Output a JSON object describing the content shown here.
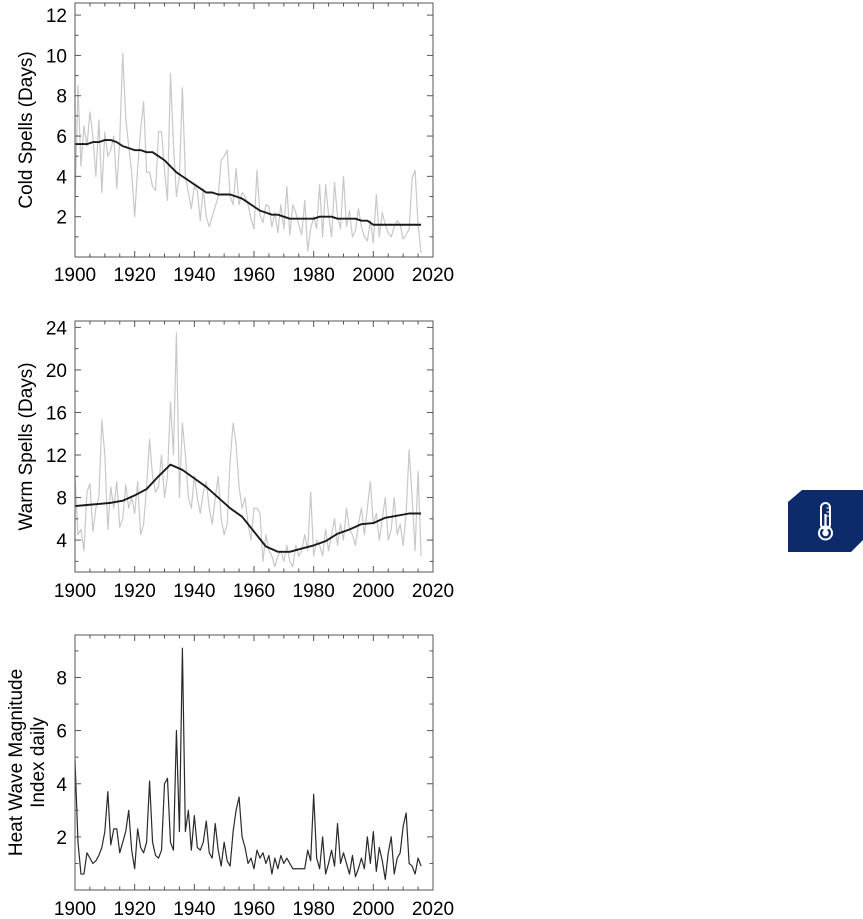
{
  "chart_data": [
    {
      "type": "line",
      "ylabel": "Cold Spells (Days)",
      "xlim": [
        1900,
        2020
      ],
      "ylim": [
        0,
        12.6
      ],
      "xticks": [
        1900,
        1920,
        1940,
        1960,
        1980,
        2000,
        2020
      ],
      "yticks": [
        2,
        4,
        6,
        8,
        10,
        12
      ],
      "series": [
        {
          "role": "annual",
          "color": "#c8c8c8",
          "x": [
            1900,
            1901,
            1902,
            1903,
            1904,
            1905,
            1906,
            1907,
            1908,
            1909,
            1910,
            1911,
            1912,
            1913,
            1914,
            1915,
            1916,
            1917,
            1918,
            1919,
            1920,
            1921,
            1922,
            1923,
            1924,
            1925,
            1926,
            1927,
            1928,
            1929,
            1930,
            1931,
            1932,
            1933,
            1934,
            1935,
            1936,
            1937,
            1938,
            1939,
            1940,
            1941,
            1942,
            1943,
            1944,
            1945,
            1946,
            1947,
            1948,
            1949,
            1950,
            1951,
            1952,
            1953,
            1954,
            1955,
            1956,
            1957,
            1958,
            1959,
            1960,
            1961,
            1962,
            1963,
            1964,
            1965,
            1966,
            1967,
            1968,
            1969,
            1970,
            1971,
            1972,
            1973,
            1974,
            1975,
            1976,
            1977,
            1978,
            1979,
            1980,
            1981,
            1982,
            1983,
            1984,
            1985,
            1986,
            1987,
            1988,
            1989,
            1990,
            1991,
            1992,
            1993,
            1994,
            1995,
            1996,
            1997,
            1998,
            1999,
            2000,
            2001,
            2002,
            2003,
            2004,
            2005,
            2006,
            2007,
            2008,
            2009,
            2010,
            2011,
            2012,
            2013,
            2014,
            2015,
            2016
          ],
          "values": [
            2.6,
            8.5,
            4.5,
            6.5,
            5.5,
            7.2,
            6.0,
            4.0,
            6.8,
            3.2,
            6.2,
            5.0,
            5.3,
            6.0,
            3.4,
            5.8,
            10.1,
            6.9,
            5.5,
            4.2,
            2.0,
            4.4,
            6.3,
            7.7,
            4.2,
            4.2,
            3.5,
            3.3,
            6.2,
            6.2,
            4.3,
            2.8,
            9.1,
            5.6,
            3.0,
            4.0,
            8.4,
            4.0,
            3.2,
            2.4,
            3.5,
            3.3,
            1.8,
            3.4,
            2.0,
            1.5,
            2.0,
            2.5,
            3.0,
            4.8,
            5.0,
            5.3,
            3.0,
            2.6,
            4.4,
            2.6,
            3.2,
            3.0,
            2.6,
            1.9,
            1.4,
            4.3,
            2.1,
            1.7,
            2.6,
            2.5,
            1.5,
            2.2,
            1.2,
            2.6,
            1.4,
            3.5,
            1.1,
            2.6,
            2.2,
            1.6,
            1.1,
            2.8,
            0.3,
            1.4,
            2.0,
            1.4,
            3.6,
            1.0,
            3.6,
            2.1,
            1.0,
            3.7,
            2.0,
            1.4,
            4.0,
            1.5,
            2.3,
            1.0,
            1.3,
            2.4,
            1.5,
            1.0,
            0.8,
            1.8,
            0.7,
            3.1,
            1.0,
            2.2,
            1.6,
            1.2,
            1.0,
            1.5,
            1.8,
            1.6,
            0.9,
            1.1,
            1.4,
            3.9,
            4.3,
            1.6,
            0.2
          ]
        },
        {
          "role": "smoothed",
          "color": "#1a1a1a",
          "x": [
            1900,
            1902,
            1904,
            1906,
            1908,
            1910,
            1912,
            1914,
            1916,
            1918,
            1920,
            1922,
            1924,
            1926,
            1928,
            1930,
            1932,
            1934,
            1936,
            1938,
            1940,
            1942,
            1944,
            1946,
            1948,
            1950,
            1952,
            1954,
            1956,
            1958,
            1960,
            1962,
            1964,
            1966,
            1968,
            1970,
            1972,
            1974,
            1976,
            1978,
            1980,
            1982,
            1984,
            1986,
            1988,
            1990,
            1992,
            1994,
            1996,
            1998,
            2000,
            2002,
            2004,
            2006,
            2008,
            2010,
            2012,
            2014,
            2016
          ],
          "values": [
            5.6,
            5.6,
            5.6,
            5.7,
            5.7,
            5.8,
            5.8,
            5.7,
            5.5,
            5.4,
            5.3,
            5.3,
            5.2,
            5.2,
            5.0,
            4.8,
            4.5,
            4.2,
            4.0,
            3.8,
            3.6,
            3.4,
            3.2,
            3.2,
            3.1,
            3.1,
            3.1,
            3.0,
            2.9,
            2.7,
            2.5,
            2.3,
            2.2,
            2.1,
            2.1,
            2.0,
            1.9,
            1.9,
            1.9,
            1.9,
            1.9,
            2.0,
            2.0,
            2.0,
            1.9,
            1.9,
            1.9,
            1.9,
            1.8,
            1.8,
            1.6,
            1.6,
            1.6,
            1.6,
            1.6,
            1.6,
            1.6,
            1.6,
            1.6
          ]
        }
      ]
    },
    {
      "type": "line",
      "ylabel": "Warm Spells (Days)",
      "xlim": [
        1900,
        2020
      ],
      "ylim": [
        1,
        24.6
      ],
      "xticks": [
        1900,
        1920,
        1940,
        1960,
        1980,
        2000,
        2020
      ],
      "yticks": [
        4,
        8,
        12,
        16,
        20,
        24
      ],
      "series": [
        {
          "role": "annual",
          "color": "#c8c8c8",
          "x": [
            1900,
            1901,
            1902,
            1903,
            1904,
            1905,
            1906,
            1907,
            1908,
            1909,
            1910,
            1911,
            1912,
            1913,
            1914,
            1915,
            1916,
            1917,
            1918,
            1919,
            1920,
            1921,
            1922,
            1923,
            1924,
            1925,
            1926,
            1927,
            1928,
            1929,
            1930,
            1931,
            1932,
            1933,
            1934,
            1935,
            1936,
            1937,
            1938,
            1939,
            1940,
            1941,
            1942,
            1943,
            1944,
            1945,
            1946,
            1947,
            1948,
            1949,
            1950,
            1951,
            1952,
            1953,
            1954,
            1955,
            1956,
            1957,
            1958,
            1959,
            1960,
            1961,
            1962,
            1963,
            1964,
            1965,
            1966,
            1967,
            1968,
            1969,
            1970,
            1971,
            1972,
            1973,
            1974,
            1975,
            1976,
            1977,
            1978,
            1979,
            1980,
            1981,
            1982,
            1983,
            1984,
            1985,
            1986,
            1987,
            1988,
            1989,
            1990,
            1991,
            1992,
            1993,
            1994,
            1995,
            1996,
            1997,
            1998,
            1999,
            2000,
            2001,
            2002,
            2003,
            2004,
            2005,
            2006,
            2007,
            2008,
            2009,
            2010,
            2011,
            2012,
            2013,
            2014,
            2015,
            2016
          ],
          "values": [
            10.0,
            4.5,
            5.0,
            3.0,
            8.5,
            9.3,
            4.8,
            7.0,
            8.0,
            15.3,
            12.0,
            5.0,
            9.0,
            7.0,
            9.5,
            5.2,
            6.0,
            9.2,
            7.0,
            8.0,
            6.5,
            9.5,
            4.5,
            5.5,
            9.0,
            13.5,
            10.0,
            8.5,
            9.0,
            12.0,
            8.0,
            10.0,
            17.0,
            12.0,
            23.5,
            8.0,
            15.0,
            12.0,
            8.0,
            7.0,
            10.0,
            8.0,
            6.5,
            8.5,
            9.5,
            7.0,
            5.5,
            8.0,
            10.0,
            6.0,
            4.5,
            5.5,
            11.5,
            15.0,
            13.0,
            9.0,
            7.0,
            8.0,
            5.5,
            4.0,
            7.0,
            7.0,
            6.5,
            2.0,
            4.5,
            3.0,
            2.5,
            1.5,
            2.5,
            3.0,
            2.0,
            3.5,
            2.0,
            1.5,
            3.5,
            2.5,
            3.0,
            4.5,
            3.0,
            8.5,
            2.5,
            4.0,
            3.5,
            2.5,
            5.0,
            3.0,
            4.5,
            6.0,
            3.5,
            5.5,
            4.0,
            7.0,
            5.0,
            4.5,
            3.5,
            5.5,
            7.0,
            4.5,
            7.0,
            9.5,
            5.5,
            6.5,
            4.0,
            6.0,
            8.0,
            4.0,
            5.0,
            8.0,
            4.5,
            5.5,
            3.5,
            6.5,
            12.5,
            8.0,
            3.0,
            10.5,
            2.5
          ]
        },
        {
          "role": "smoothed",
          "color": "#1a1a1a",
          "x": [
            1900,
            1904,
            1908,
            1912,
            1916,
            1920,
            1924,
            1928,
            1932,
            1936,
            1940,
            1944,
            1948,
            1952,
            1956,
            1960,
            1964,
            1968,
            1972,
            1976,
            1980,
            1984,
            1988,
            1992,
            1996,
            2000,
            2004,
            2008,
            2012,
            2016
          ],
          "values": [
            7.2,
            7.3,
            7.4,
            7.5,
            7.7,
            8.2,
            8.8,
            10.0,
            11.1,
            10.6,
            9.8,
            9.0,
            8.0,
            7.0,
            6.2,
            4.8,
            3.4,
            2.9,
            2.9,
            3.2,
            3.5,
            3.9,
            4.6,
            5.0,
            5.5,
            5.6,
            6.1,
            6.3,
            6.5,
            6.5
          ]
        }
      ]
    },
    {
      "type": "line",
      "ylabel": "Heat Wave Magnitude Index daily",
      "ylabel_lines": [
        "Heat Wave Magnitude",
        "Index daily"
      ],
      "xlim": [
        1900,
        2020
      ],
      "ylim": [
        0,
        9.6
      ],
      "xticks": [
        1900,
        1920,
        1940,
        1960,
        1980,
        2000,
        2020
      ],
      "yticks": [
        2,
        4,
        6,
        8
      ],
      "series": [
        {
          "role": "annual",
          "color": "#2a2a2a",
          "x": [
            1900,
            1901,
            1902,
            1903,
            1904,
            1905,
            1906,
            1907,
            1908,
            1909,
            1910,
            1911,
            1912,
            1913,
            1914,
            1915,
            1916,
            1917,
            1918,
            1919,
            1920,
            1921,
            1922,
            1923,
            1924,
            1925,
            1926,
            1927,
            1928,
            1929,
            1930,
            1931,
            1932,
            1933,
            1934,
            1935,
            1936,
            1937,
            1938,
            1939,
            1940,
            1941,
            1942,
            1943,
            1944,
            1945,
            1946,
            1947,
            1948,
            1949,
            1950,
            1951,
            1952,
            1953,
            1954,
            1955,
            1956,
            1957,
            1958,
            1959,
            1960,
            1961,
            1962,
            1963,
            1964,
            1965,
            1966,
            1967,
            1968,
            1969,
            1970,
            1971,
            1972,
            1973,
            1974,
            1975,
            1976,
            1977,
            1978,
            1979,
            1980,
            1981,
            1982,
            1983,
            1984,
            1985,
            1986,
            1987,
            1988,
            1989,
            1990,
            1991,
            1992,
            1993,
            1994,
            1995,
            1996,
            1997,
            1998,
            1999,
            2000,
            2001,
            2002,
            2003,
            2004,
            2005,
            2006,
            2007,
            2008,
            2009,
            2010,
            2011,
            2012,
            2013,
            2014,
            2015,
            2016
          ],
          "values": [
            4.9,
            1.8,
            0.6,
            0.6,
            1.4,
            1.2,
            1.0,
            1.1,
            1.3,
            1.6,
            2.2,
            3.7,
            1.7,
            2.3,
            2.3,
            1.4,
            1.8,
            2.2,
            3.0,
            1.5,
            0.8,
            2.3,
            1.6,
            1.4,
            1.8,
            4.1,
            1.8,
            1.3,
            1.2,
            1.5,
            4.0,
            4.2,
            1.8,
            1.5,
            6.0,
            2.2,
            9.1,
            2.2,
            3.0,
            1.5,
            2.8,
            1.6,
            1.5,
            1.8,
            2.6,
            1.4,
            1.2,
            2.5,
            1.5,
            0.9,
            1.8,
            1.1,
            0.9,
            2.2,
            3.0,
            3.5,
            2.0,
            1.6,
            1.0,
            1.2,
            0.8,
            1.5,
            1.2,
            1.4,
            1.0,
            1.3,
            0.6,
            1.2,
            0.8,
            1.3,
            1.0,
            1.2,
            1.0,
            0.8,
            0.8,
            0.8,
            0.8,
            0.8,
            1.5,
            1.1,
            3.6,
            1.2,
            0.8,
            2.0,
            0.6,
            1.0,
            1.5,
            0.9,
            2.5,
            1.0,
            1.4,
            1.0,
            0.6,
            1.3,
            0.5,
            0.8,
            1.2,
            0.8,
            2.0,
            1.0,
            2.2,
            0.7,
            1.6,
            1.1,
            0.4,
            1.4,
            2.0,
            0.6,
            1.2,
            1.4,
            2.4,
            2.9,
            1.0,
            0.9,
            0.6,
            1.2,
            0.9
          ]
        }
      ]
    }
  ],
  "badge": {
    "icon": "thermometer-icon",
    "color": "#0d2a6b"
  }
}
